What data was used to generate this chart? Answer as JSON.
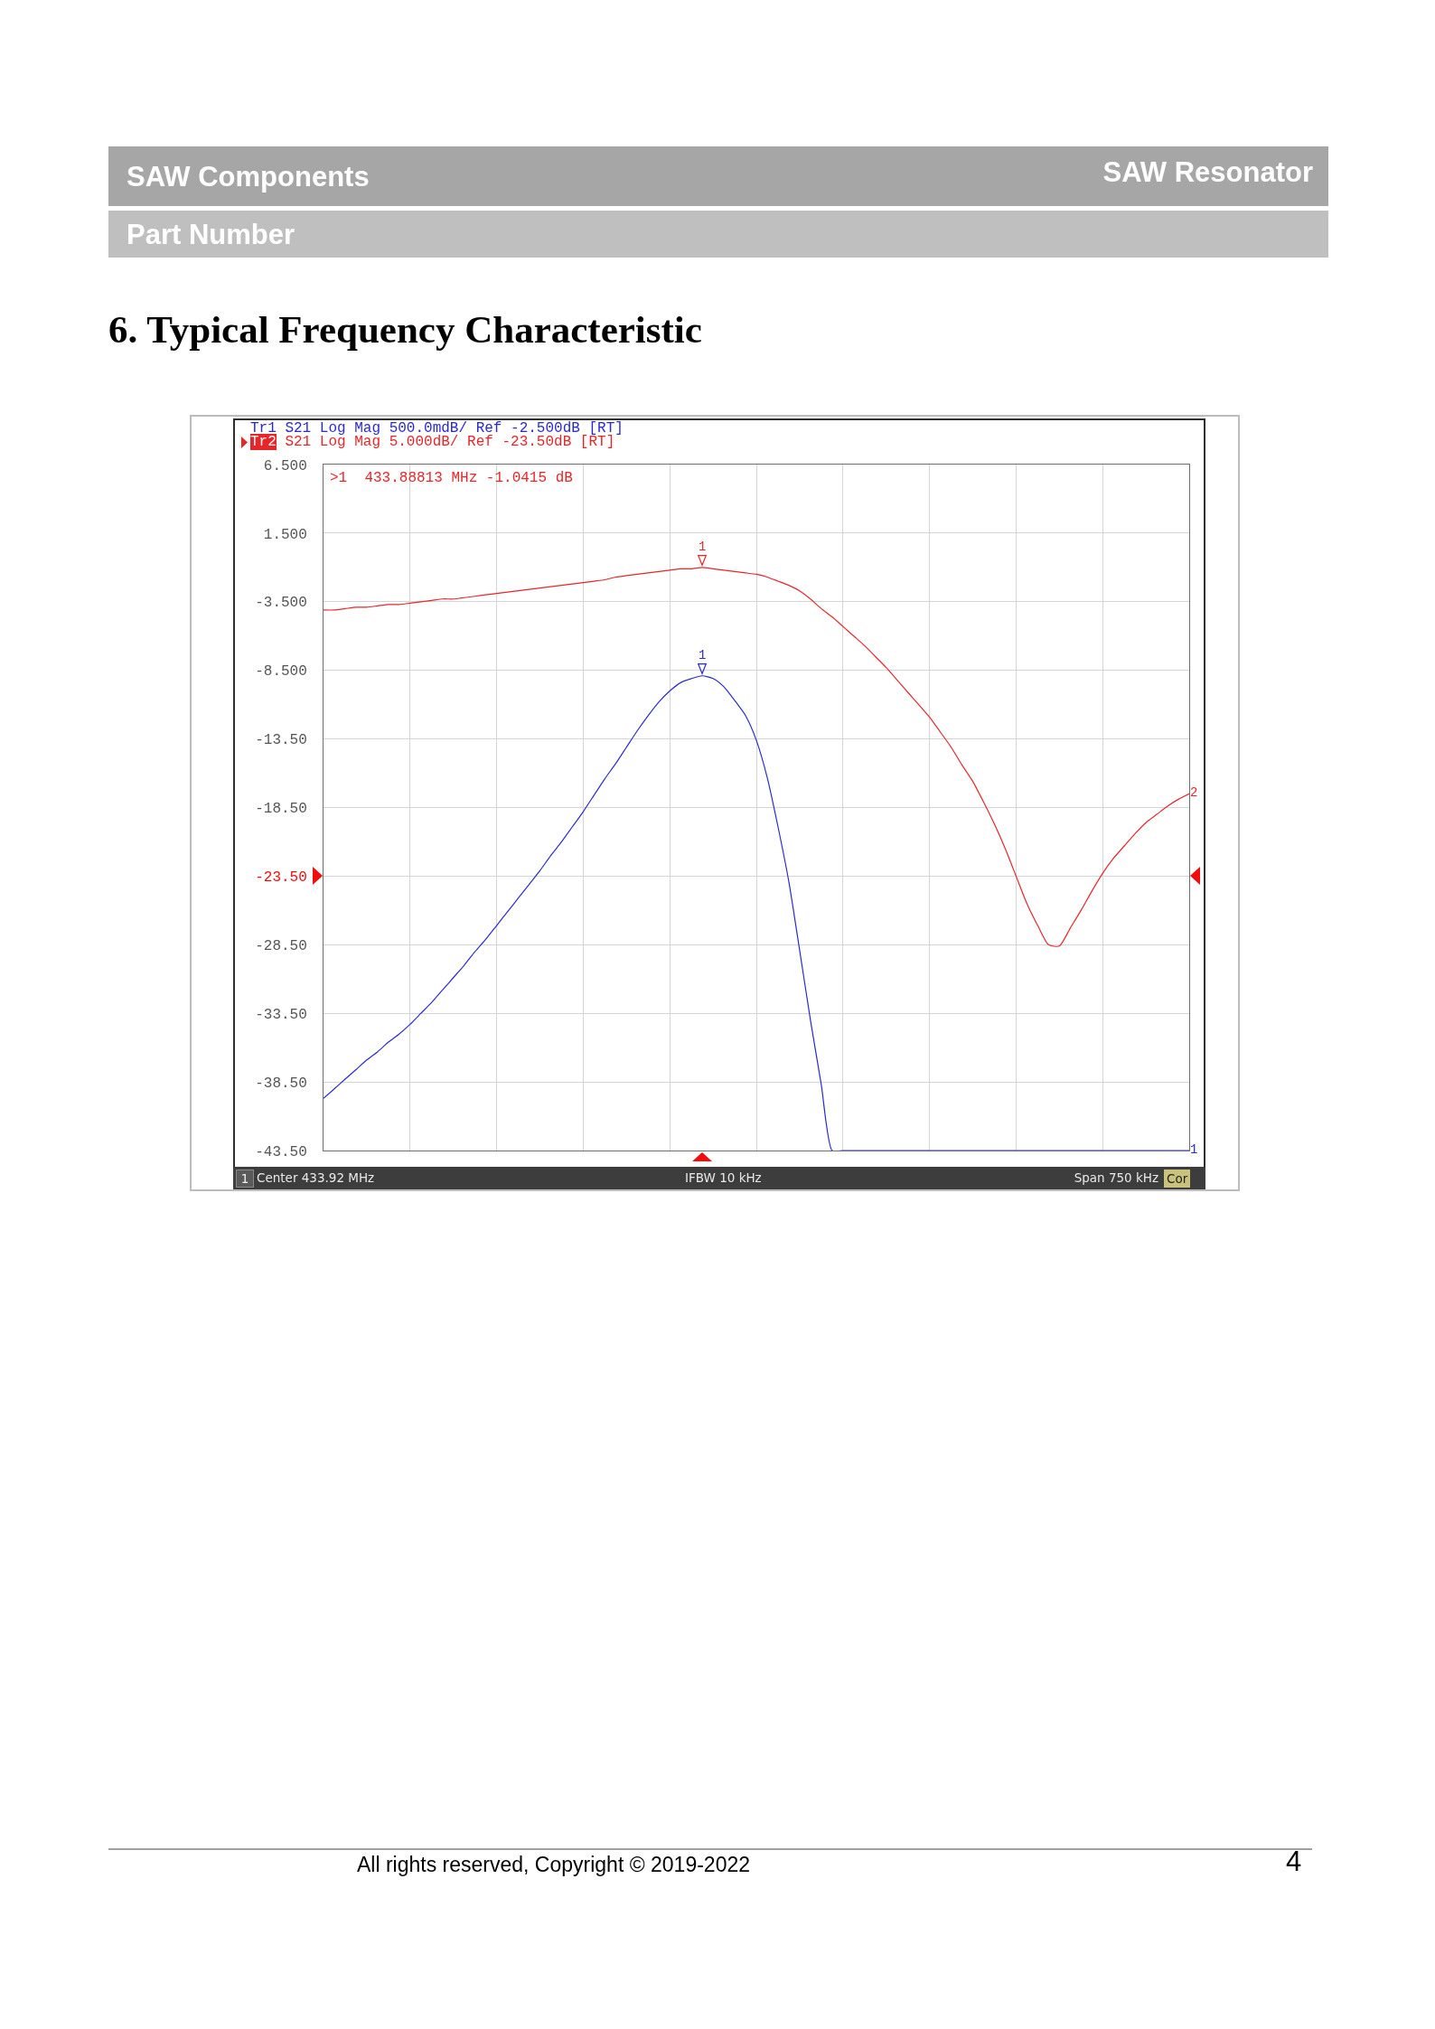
{
  "chart_data": {
    "type": "line",
    "title": "6. Typical Frequency Characteristic",
    "annotations": [
      "SAW Components",
      "SAW Resonator",
      "Part Number",
      ">1  433.88813 MHz -1.0415 dB",
      "1",
      "Center 433.92 MHz",
      "IFBW 10 kHz",
      "Span 750 kHz",
      "Cor",
      "All rights reserved, Copyright © 2019-2022",
      "4",
      {
        "text": "1",
        "y": -1.0
      },
      {
        "text": "1",
        "y": -8.9
      },
      "2",
      "1"
    ],
    "categories": [
      null,
      null,
      null,
      null,
      null,
      null,
      null,
      null,
      null,
      null,
      null,
      null,
      null,
      null,
      null,
      null,
      null,
      null,
      null,
      null,
      null,
      null,
      null,
      null,
      null,
      null,
      null,
      null,
      null,
      null,
      null,
      null,
      null,
      null,
      null,
      null,
      null,
      null,
      null,
      null,
      null,
      null,
      null,
      null,
      null,
      null,
      null,
      null,
      null,
      null,
      null,
      null,
      null,
      null,
      null,
      null,
      null,
      null,
      null,
      null,
      null,
      null,
      null,
      null,
      null,
      null,
      null,
      null,
      null,
      null,
      null,
      null,
      null,
      null,
      null,
      null,
      null,
      null,
      null,
      null,
      null
    ],
    "series": [
      {
        "name": "Tr1 S21 Log Mag 500.0mdB/ Ref -2.500dB [RT]",
        "color": "#2a2ad4",
        "values": [
          -39.7,
          -39.0,
          -38.3,
          -37.6,
          -36.9,
          -36.3,
          -35.6,
          -35.0,
          -34.3,
          -33.5,
          -32.7,
          -31.8,
          -30.9,
          -30.0,
          -29.0,
          -28.1,
          -27.1,
          -26.1,
          -25.1,
          -24.1,
          -23.1,
          -22.0,
          -21.0,
          -19.9,
          -18.8,
          -17.6,
          -16.4,
          -15.3,
          -14.1,
          -12.9,
          -11.8,
          -10.8,
          -10.0,
          -9.4,
          -9.1,
          -8.9,
          -9.1,
          -9.7,
          -10.7,
          -11.8,
          -13.6,
          -16.3,
          -19.9,
          -23.9,
          -28.9,
          -34.0,
          -38.7,
          -43.5,
          -43.5,
          -43.5,
          -43.5,
          -43.5,
          -43.5,
          -43.5,
          -43.5,
          -43.5,
          -43.5,
          -43.5,
          -43.5,
          -43.5,
          -43.5,
          -43.5,
          -43.5,
          -43.5,
          -43.5,
          -43.5,
          -43.5,
          -43.5,
          -43.5,
          -43.5,
          -43.5,
          -43.5,
          -43.5,
          -43.5,
          -43.5,
          -43.5,
          -43.5,
          -43.5,
          -43.5,
          -43.5,
          -43.5
        ]
      },
      {
        "name": "Tr2 S21 Log Mag 5.000dB/ Ref -23.50dB [RT]",
        "color": "#e8262a",
        "values": [
          -4.1,
          -4.1,
          -4.0,
          -3.9,
          -3.9,
          -3.8,
          -3.7,
          -3.7,
          -3.6,
          -3.5,
          -3.4,
          -3.3,
          -3.3,
          -3.2,
          -3.1,
          -3.0,
          -2.9,
          -2.8,
          -2.7,
          -2.6,
          -2.5,
          -2.4,
          -2.3,
          -2.2,
          -2.1,
          -2.0,
          -1.9,
          -1.7,
          -1.6,
          -1.5,
          -1.4,
          -1.3,
          -1.2,
          -1.1,
          -1.1,
          -1.0,
          -1.1,
          -1.2,
          -1.3,
          -1.4,
          -1.5,
          -1.7,
          -2.0,
          -2.3,
          -2.7,
          -3.3,
          -4.0,
          -4.6,
          -5.3,
          -6.0,
          -6.7,
          -7.5,
          -8.3,
          -9.2,
          -10.1,
          -11.0,
          -11.9,
          -13.0,
          -14.1,
          -15.4,
          -16.6,
          -18.1,
          -19.7,
          -21.5,
          -23.5,
          -25.5,
          -27.1,
          -28.5,
          -28.6,
          -27.3,
          -26.0,
          -24.6,
          -23.3,
          -22.2,
          -21.3,
          -20.4,
          -19.6,
          -19.0,
          -18.4,
          -17.9,
          -17.5
        ]
      }
    ],
    "ylim": [
      -43.5,
      6.5
    ],
    "yticks": [
      {
        "value": 6.5,
        "label": "6.500"
      },
      {
        "value": 1.5,
        "label": "1.500"
      },
      {
        "value": -3.5,
        "label": "-3.500"
      },
      {
        "value": -8.5,
        "label": "-8.500"
      },
      {
        "value": -13.5,
        "label": "-13.50"
      },
      {
        "value": -18.5,
        "label": "-18.50"
      },
      {
        "value": -23.5,
        "label": "-23.50"
      },
      {
        "value": -28.5,
        "label": "-28.50"
      },
      {
        "value": -33.5,
        "label": "-33.50"
      },
      {
        "value": -38.5,
        "label": "-38.50"
      },
      {
        "value": -43.5,
        "label": "-43.50"
      }
    ],
    "grid": true,
    "legend": "top left",
    "tick_labels": "y"
  }
}
